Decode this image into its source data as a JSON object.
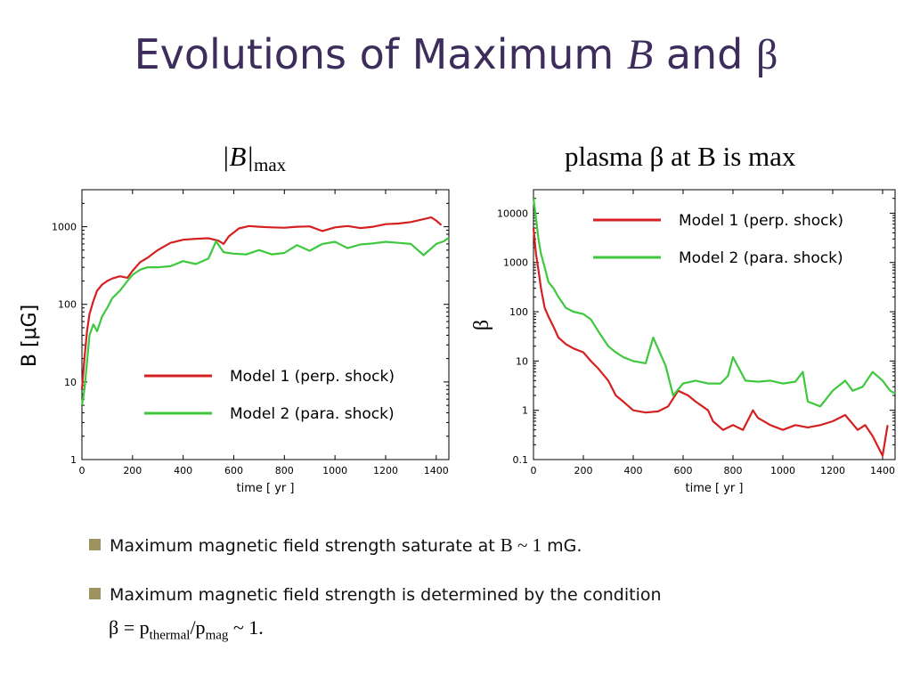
{
  "slide": {
    "title_prefix": "Evolutions of Maximum ",
    "title_var": "B",
    "title_mid": " and ",
    "title_beta": "β"
  },
  "left_panel": {
    "title_main": "|B|",
    "title_sub": "max"
  },
  "right_panel": {
    "title": "plasma β at B is max"
  },
  "bullets": [
    {
      "text_a": "Maximum magnetic field strength saturate at ",
      "text_b": "B ~ 1",
      "text_c": " mG."
    },
    {
      "text_a": "Maximum magnetic field strength is determined by the condition"
    }
  ],
  "equation": {
    "lhs": "β = p",
    "sub1": "thermal",
    "mid": "/p",
    "sub2": "mag",
    "rhs": " ~ 1."
  },
  "colors": {
    "model1": "#d42020",
    "model2": "#3ec83e",
    "title": "#3d2d5c",
    "bullet": "#9c9360"
  },
  "chart_data": [
    {
      "type": "line",
      "title": "|B|max",
      "xlabel": "time [ yr ]",
      "ylabel": "B [μG]",
      "xlim": [
        0,
        1450
      ],
      "ylim": [
        1,
        3000
      ],
      "yscale": "log",
      "xticks": [
        0,
        200,
        400,
        600,
        800,
        1000,
        1200,
        1400
      ],
      "yticks": [
        1,
        10,
        100,
        1000
      ],
      "ytick_labels": [
        "1",
        "10",
        "100",
        "1000"
      ],
      "legend": "bottom-right",
      "series": [
        {
          "name": "Model 1 (perp. shock)",
          "color": "#d42020",
          "x": [
            0,
            10,
            20,
            30,
            45,
            60,
            80,
            100,
            120,
            150,
            180,
            200,
            230,
            260,
            300,
            350,
            400,
            450,
            500,
            540,
            560,
            580,
            620,
            660,
            700,
            750,
            800,
            850,
            900,
            950,
            1000,
            1050,
            1100,
            1150,
            1200,
            1250,
            1300,
            1350,
            1380,
            1400,
            1420
          ],
          "y": [
            8,
            20,
            45,
            75,
            110,
            150,
            180,
            200,
            215,
            230,
            220,
            270,
            350,
            400,
            500,
            620,
            680,
            700,
            710,
            660,
            600,
            750,
            950,
            1020,
            1000,
            980,
            970,
            1000,
            1010,
            880,
            980,
            1020,
            960,
            1000,
            1080,
            1100,
            1150,
            1250,
            1320,
            1200,
            1050
          ]
        },
        {
          "name": "Model 2 (para. shock)",
          "color": "#3ec83e",
          "x": [
            0,
            10,
            20,
            30,
            45,
            60,
            80,
            100,
            120,
            150,
            180,
            200,
            230,
            260,
            300,
            350,
            400,
            450,
            500,
            530,
            560,
            600,
            650,
            700,
            750,
            800,
            850,
            900,
            950,
            1000,
            1050,
            1100,
            1150,
            1200,
            1250,
            1300,
            1350,
            1400,
            1430,
            1450
          ],
          "y": [
            5,
            8,
            18,
            40,
            55,
            45,
            70,
            90,
            120,
            150,
            200,
            240,
            280,
            300,
            300,
            310,
            360,
            330,
            390,
            650,
            470,
            450,
            440,
            500,
            440,
            460,
            580,
            490,
            600,
            640,
            530,
            590,
            610,
            640,
            620,
            600,
            430,
            600,
            650,
            720
          ]
        }
      ]
    },
    {
      "type": "line",
      "title": "plasma β at B is max",
      "xlabel": "time [ yr ]",
      "ylabel": "β",
      "xlim": [
        0,
        1450
      ],
      "ylim": [
        0.1,
        30000
      ],
      "yscale": "log",
      "xticks": [
        0,
        200,
        400,
        600,
        800,
        1000,
        1200,
        1400
      ],
      "yticks": [
        0.1,
        1,
        10,
        100,
        1000,
        10000
      ],
      "ytick_labels": [
        "0.1",
        "1",
        "10",
        "100",
        "1000",
        "10000"
      ],
      "legend": "top-right",
      "series": [
        {
          "name": "Model 1 (perp. shock)",
          "color": "#d42020",
          "x": [
            0,
            10,
            20,
            30,
            45,
            60,
            80,
            100,
            130,
            160,
            200,
            230,
            260,
            300,
            330,
            360,
            400,
            450,
            500,
            540,
            580,
            620,
            650,
            700,
            720,
            760,
            800,
            840,
            880,
            900,
            950,
            1000,
            1050,
            1100,
            1150,
            1200,
            1250,
            1300,
            1330,
            1360,
            1390,
            1400,
            1420
          ],
          "y": [
            5000,
            1500,
            700,
            300,
            120,
            80,
            50,
            30,
            22,
            18,
            15,
            10,
            7,
            4,
            2,
            1.5,
            1.0,
            0.9,
            0.95,
            1.2,
            2.5,
            2.0,
            1.5,
            1.0,
            0.6,
            0.4,
            0.5,
            0.4,
            1.0,
            0.7,
            0.5,
            0.4,
            0.5,
            0.45,
            0.5,
            0.6,
            0.8,
            0.4,
            0.5,
            0.3,
            0.15,
            0.12,
            0.5
          ]
        },
        {
          "name": "Model 2 (para. shock)",
          "color": "#3ec83e",
          "x": [
            0,
            10,
            20,
            30,
            45,
            60,
            80,
            100,
            130,
            160,
            200,
            230,
            260,
            300,
            330,
            360,
            400,
            450,
            480,
            530,
            560,
            600,
            650,
            700,
            750,
            780,
            800,
            850,
            900,
            950,
            1000,
            1050,
            1080,
            1100,
            1150,
            1200,
            1250,
            1280,
            1320,
            1360,
            1400,
            1430,
            1450
          ],
          "y": [
            20000,
            8000,
            3000,
            1500,
            800,
            400,
            300,
            200,
            120,
            100,
            90,
            70,
            40,
            20,
            15,
            12,
            10,
            9,
            30,
            8,
            2,
            3.5,
            4,
            3.5,
            3.5,
            5,
            12,
            4,
            3.8,
            4,
            3.5,
            3.8,
            6,
            1.5,
            1.2,
            2.5,
            4,
            2.5,
            3,
            6,
            4,
            2.5,
            2.2
          ]
        }
      ]
    }
  ]
}
